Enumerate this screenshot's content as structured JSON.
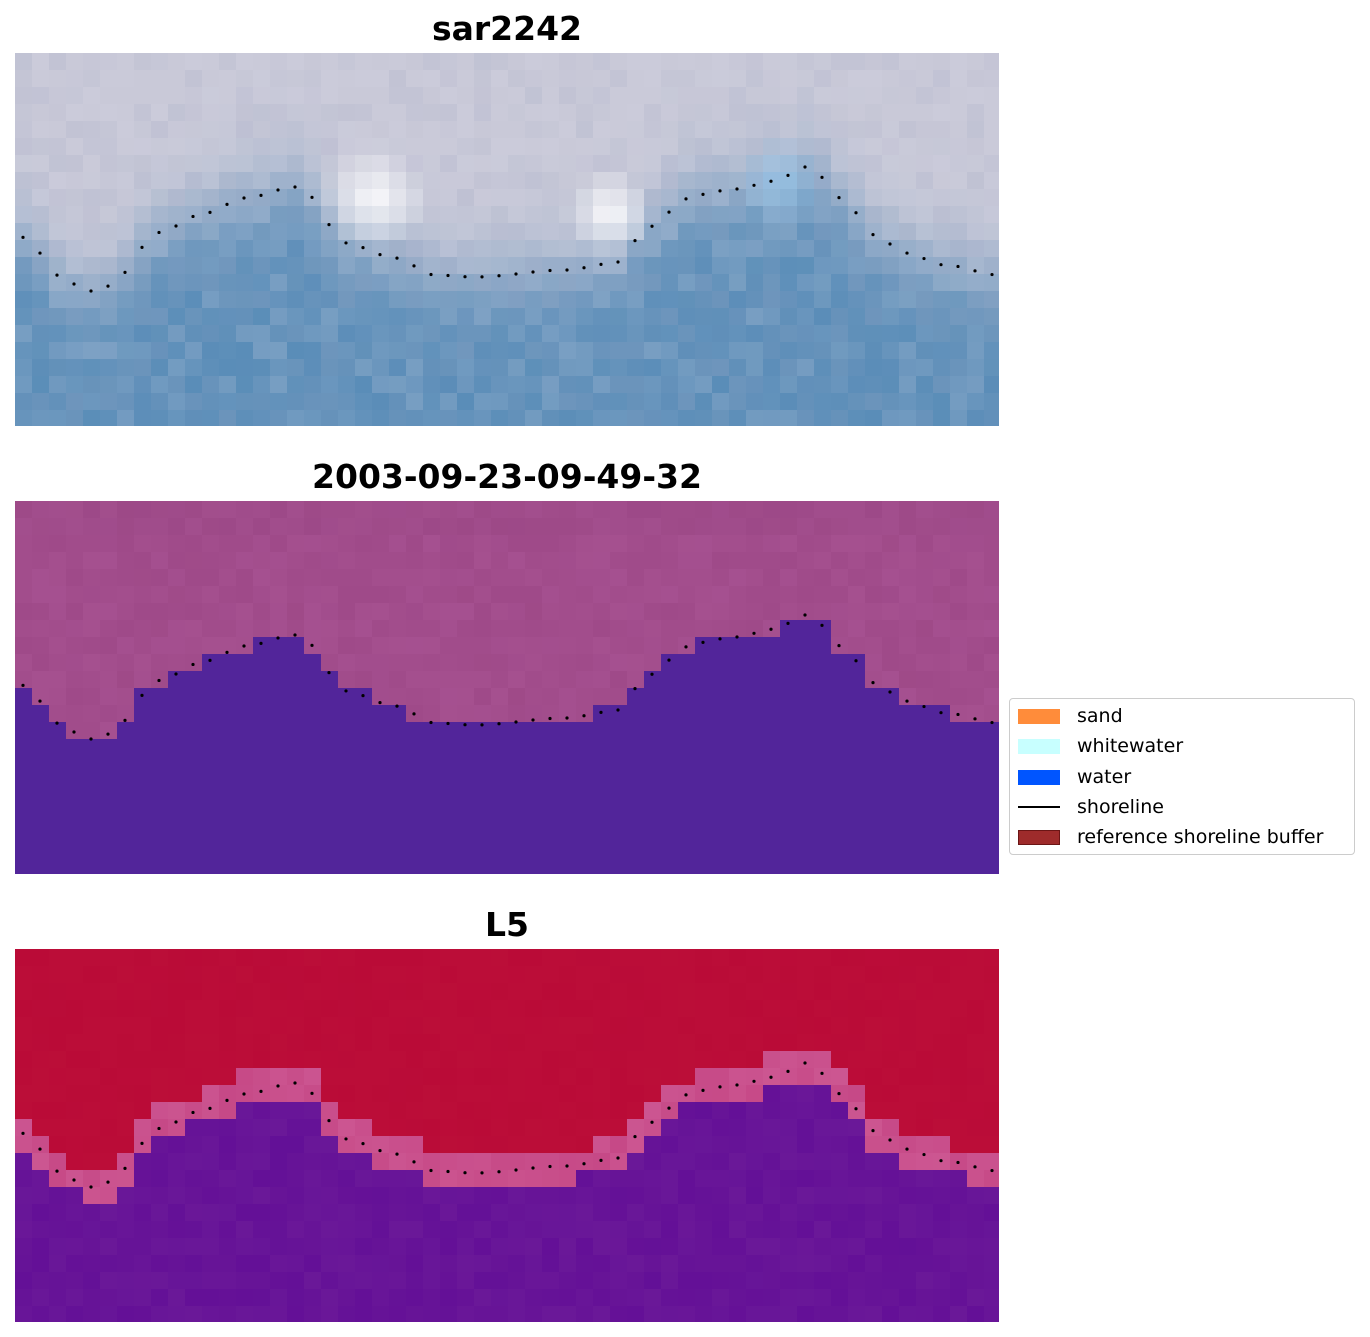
{
  "panels": [
    {
      "title": "sar2242",
      "type": "rgb",
      "colors": {
        "land": "#c9c9d8",
        "water": "#5a8db8",
        "highlight": "#ffffff"
      }
    },
    {
      "title": "2003-09-23-09-49-32",
      "type": "classification",
      "colors": {
        "land": "#a04b8a",
        "water": "#52259a"
      }
    },
    {
      "title": "L5",
      "type": "probability",
      "colors": {
        "land": "#ba0b37",
        "transition": "#c84d8a",
        "water": "#6a1898"
      }
    }
  ],
  "legend": {
    "items": [
      {
        "label": "sand",
        "kind": "patch",
        "color": "#ff8c3a"
      },
      {
        "label": "whitewater",
        "kind": "patch",
        "color": "#c8ffff"
      },
      {
        "label": "water",
        "kind": "patch",
        "color": "#0055ff"
      },
      {
        "label": "shoreline",
        "kind": "line",
        "color": "#000000"
      },
      {
        "label": "reference shoreline buffer",
        "kind": "patch",
        "color": "#9e2b2b",
        "edge": "#6b1515"
      }
    ]
  }
}
